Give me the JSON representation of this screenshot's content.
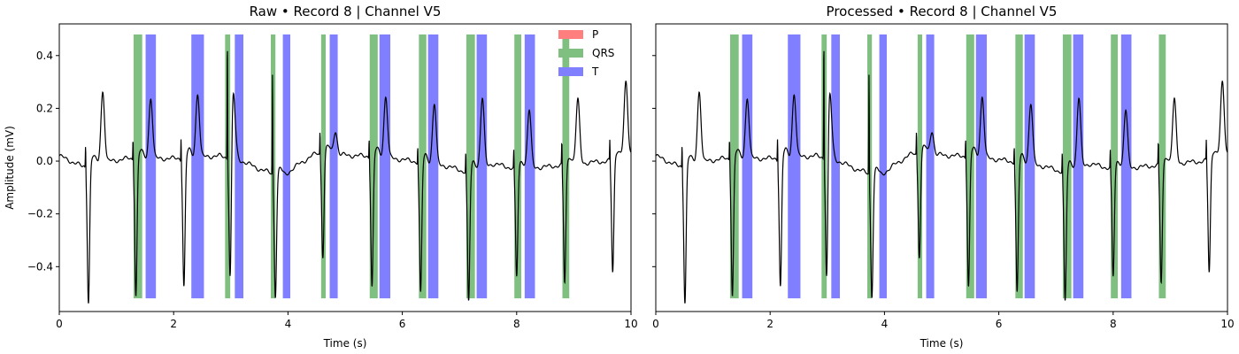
{
  "chart_data": [
    {
      "type": "line",
      "title": "Raw • Record 8 | Channel V5",
      "xlabel": "Time (s)",
      "ylabel": "Amplitude (mV)",
      "xlim": [
        0,
        10
      ],
      "ylim": [
        -0.57,
        0.52
      ],
      "x_ticks": [
        0,
        2,
        4,
        6,
        8,
        10
      ],
      "x_tick_labels": [
        "0",
        "2",
        "4",
        "6",
        "8",
        "10"
      ],
      "y_ticks": [
        -0.4,
        -0.2,
        0.0,
        0.2,
        0.4
      ],
      "y_tick_labels": [
        "−0.4",
        "−0.2",
        "0.0",
        "0.2",
        "0.4"
      ],
      "show_legend": true,
      "legend_position": "top-right"
    },
    {
      "type": "line",
      "title": "Processed • Record 8 | Channel V5",
      "xlabel": "Time (s)",
      "ylabel": "",
      "xlim": [
        0,
        10
      ],
      "ylim": [
        -0.57,
        0.52
      ],
      "x_ticks": [
        0,
        2,
        4,
        6,
        8,
        10
      ],
      "x_tick_labels": [
        "0",
        "2",
        "4",
        "6",
        "8",
        "10"
      ],
      "y_ticks": [
        -0.4,
        -0.2,
        0.0,
        0.2,
        0.4
      ],
      "y_tick_labels": [
        "",
        "",
        "",
        "",
        ""
      ],
      "show_legend": false
    }
  ],
  "legend": [
    {
      "label": "P",
      "color": "#ff7f7f"
    },
    {
      "label": "QRS",
      "color": "#7fbf7f"
    },
    {
      "label": "T",
      "color": "#7f7fff"
    }
  ],
  "annotations": {
    "band_range": [
      -0.52,
      0.48
    ],
    "qrs": [
      [
        1.3,
        1.45
      ],
      [
        2.9,
        2.99
      ],
      [
        3.7,
        3.78
      ],
      [
        4.58,
        4.66
      ],
      [
        5.43,
        5.57
      ],
      [
        6.29,
        6.42
      ],
      [
        7.12,
        7.27
      ],
      [
        7.96,
        8.08
      ],
      [
        8.8,
        8.92
      ]
    ],
    "t": [
      [
        1.51,
        1.69
      ],
      [
        2.31,
        2.53
      ],
      [
        3.07,
        3.22
      ],
      [
        3.91,
        4.04
      ],
      [
        4.73,
        4.87
      ],
      [
        5.6,
        5.79
      ],
      [
        6.45,
        6.63
      ],
      [
        7.3,
        7.48
      ],
      [
        8.14,
        8.32
      ]
    ],
    "p": []
  },
  "ecg": {
    "color": "#000000",
    "baseline": [
      [
        0,
        0.02
      ],
      [
        0.2,
        0.0
      ],
      [
        0.4,
        -0.02
      ],
      [
        0.9,
        0.0
      ],
      [
        1.2,
        0.01
      ],
      [
        2.0,
        0.01
      ],
      [
        2.8,
        0.02
      ],
      [
        3.2,
        0.0
      ],
      [
        3.5,
        -0.03
      ],
      [
        3.9,
        -0.06
      ],
      [
        4.2,
        -0.01
      ],
      [
        4.5,
        0.03
      ],
      [
        5.2,
        0.02
      ],
      [
        5.5,
        0.02
      ],
      [
        6.2,
        0.0
      ],
      [
        6.8,
        -0.02
      ],
      [
        7.1,
        -0.04
      ],
      [
        7.6,
        -0.01
      ],
      [
        8.0,
        -0.03
      ],
      [
        8.6,
        -0.02
      ],
      [
        9.0,
        -0.01
      ],
      [
        9.6,
        0.0
      ],
      [
        10.0,
        0.03
      ]
    ],
    "beats": [
      {
        "pos": 0.46,
        "spike": 0.1,
        "dip": -0.52,
        "t_amp": 0.27,
        "t_offset": 0.3
      },
      {
        "pos": 1.29,
        "spike": 0.1,
        "dip": -0.52,
        "t_amp": 0.23,
        "t_offset": 0.31
      },
      {
        "pos": 2.13,
        "spike": 0.1,
        "dip": -0.49,
        "t_amp": 0.24,
        "t_offset": 0.29
      },
      {
        "pos": 2.94,
        "spike": 0.47,
        "dip": -0.51,
        "t_amp": 0.0,
        "t_offset": 0.0
      },
      {
        "pos": 3.04,
        "spike": 0.0,
        "dip": 0.0,
        "t_amp": 0.24,
        "t_offset": 0.0
      },
      {
        "pos": 3.73,
        "spike": 0.4,
        "dip": -0.46,
        "t_amp": 0.0,
        "t_offset": 0.0
      },
      {
        "pos": 3.84,
        "spike": 0.0,
        "dip": 0.0,
        "t_amp": 0.0,
        "t_offset": 0.0
      },
      {
        "pos": 4.56,
        "spike": 0.1,
        "dip": -0.39,
        "t_amp": 0.09,
        "t_offset": 0.27
      },
      {
        "pos": 5.42,
        "spike": 0.09,
        "dip": -0.5,
        "t_amp": 0.23,
        "t_offset": 0.29
      },
      {
        "pos": 6.27,
        "spike": 0.08,
        "dip": -0.5,
        "t_amp": 0.23,
        "t_offset": 0.29
      },
      {
        "pos": 7.11,
        "spike": 0.09,
        "dip": -0.5,
        "t_amp": 0.26,
        "t_offset": 0.29
      },
      {
        "pos": 7.95,
        "spike": 0.08,
        "dip": -0.41,
        "t_amp": 0.22,
        "t_offset": 0.27
      },
      {
        "pos": 8.79,
        "spike": 0.1,
        "dip": -0.45,
        "t_amp": 0.24,
        "t_offset": 0.28
      },
      {
        "pos": 9.63,
        "spike": 0.09,
        "dip": -0.43,
        "t_amp": 0.27,
        "t_offset": 0.28
      }
    ]
  }
}
